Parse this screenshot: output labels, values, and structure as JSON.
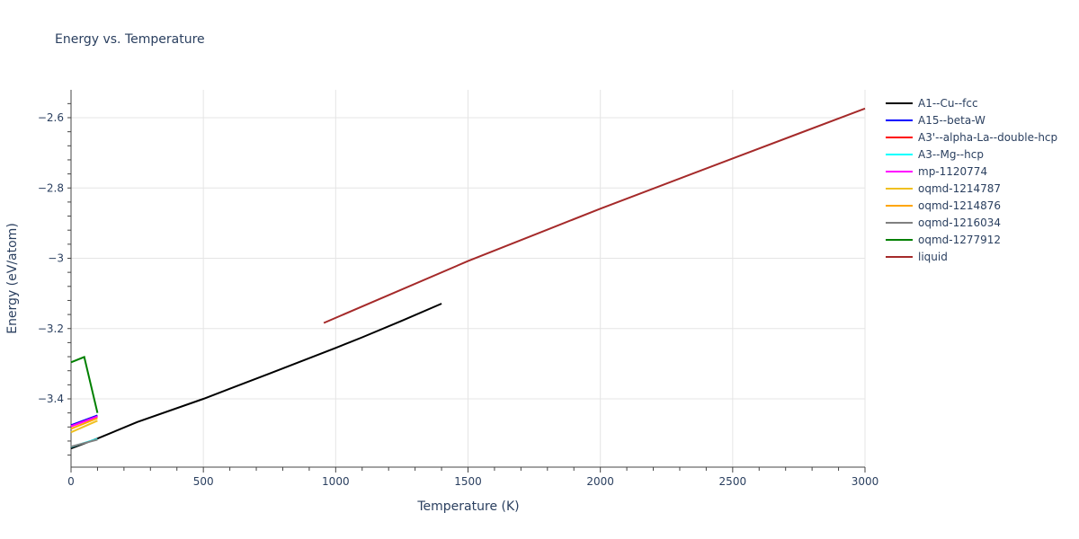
{
  "chart_data": {
    "type": "line",
    "title": "Energy vs. Temperature",
    "xlabel": "Temperature (K)",
    "ylabel": "Energy (eV/atom)",
    "xlim": [
      0,
      3000
    ],
    "ylim": [
      -3.58,
      -2.52
    ],
    "xticks": [
      0,
      500,
      1000,
      1500,
      2000,
      2500,
      3000
    ],
    "xtick_labels": [
      "0",
      "500",
      "1000",
      "1500",
      "2000",
      "2500",
      "3000"
    ],
    "yticks": [
      -3.4,
      -3.2,
      -3.0,
      -2.8,
      -2.6
    ],
    "ytick_labels": [
      "−3.4",
      "−3.2",
      "−3",
      "−2.8",
      "−2.6"
    ],
    "grid": true,
    "legend_position": "right",
    "series": [
      {
        "name": "A1--Cu--fcc",
        "color": "#000000",
        "x": [
          0,
          100,
          250,
          500,
          750,
          1000,
          1100,
          1250,
          1400
        ],
        "y": [
          -3.541,
          -3.513,
          -3.466,
          -3.4,
          -3.328,
          -3.255,
          -3.225,
          -3.178,
          -3.129
        ]
      },
      {
        "name": "A15--beta-W",
        "color": "#0000ff",
        "x": [
          0,
          100
        ],
        "y": [
          -3.475,
          -3.447
        ]
      },
      {
        "name": "A3'--alpha-La--double-hcp",
        "color": "#ff0000",
        "x": [
          0,
          100
        ],
        "y": [
          -3.478,
          -3.45
        ]
      },
      {
        "name": "A3--Mg--hcp",
        "color": "#00ffff",
        "x": [
          0,
          100
        ],
        "y": [
          -3.537,
          -3.514
        ]
      },
      {
        "name": "mp-1120774",
        "color": "#ff00ff",
        "x": [
          0,
          100
        ],
        "y": [
          -3.478,
          -3.45
        ]
      },
      {
        "name": "oqmd-1214787",
        "color": "#f0c020",
        "x": [
          0,
          100
        ],
        "y": [
          -3.495,
          -3.462
        ]
      },
      {
        "name": "oqmd-1214876",
        "color": "#ffa500",
        "x": [
          0,
          100
        ],
        "y": [
          -3.485,
          -3.455
        ]
      },
      {
        "name": "oqmd-1216034",
        "color": "#808080",
        "x": [
          0,
          100
        ],
        "y": [
          -3.536,
          -3.516
        ]
      },
      {
        "name": "oqmd-1277912",
        "color": "#008000",
        "x": [
          0,
          50,
          100
        ],
        "y": [
          -3.296,
          -3.281,
          -3.44
        ]
      },
      {
        "name": "liquid",
        "color": "#a52a2a",
        "x": [
          955,
          1500,
          2000,
          2500,
          3000
        ],
        "y": [
          -3.184,
          -3.008,
          -2.859,
          -2.716,
          -2.574
        ]
      }
    ]
  }
}
